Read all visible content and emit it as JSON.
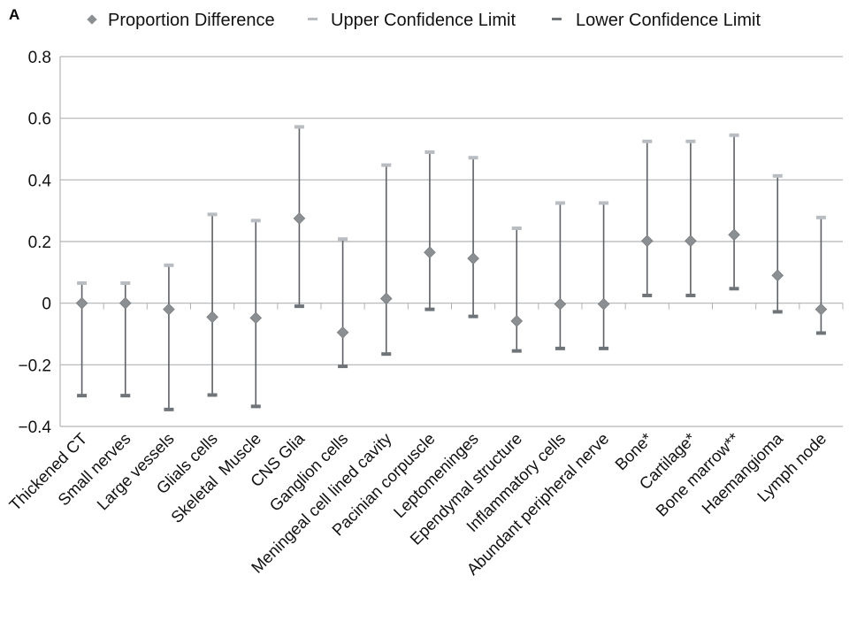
{
  "panel_label": "A",
  "legend": {
    "items": [
      {
        "label": "Proportion Difference",
        "symbol": "diamond",
        "color": "#8c8f92"
      },
      {
        "label": "Upper Confidence Limit",
        "symbol": "dash",
        "color": "#b9bdc1"
      },
      {
        "label": "Lower Confidence Limit",
        "symbol": "dash",
        "color": "#6f7478"
      }
    ]
  },
  "colors": {
    "gridline": "#b0b3b6",
    "whisker": "#5d6064",
    "diamond": "#8c8f92",
    "upper_cap": "#b9bdc1",
    "lower_cap": "#6f7478"
  },
  "chart_data": {
    "type": "scatter",
    "title": "",
    "xlabel": "",
    "ylabel": "",
    "ylim": [
      -0.4,
      0.8
    ],
    "yticks": [
      -0.4,
      -0.2,
      0,
      0.2,
      0.4,
      0.6,
      0.8
    ],
    "ytick_labels": [
      "−0.4",
      "−0.2",
      "0",
      "0.2",
      "0.4",
      "0.6",
      "0.8"
    ],
    "grid": true,
    "legend_position": "top",
    "categories": [
      "Thickened CT",
      "Small nerves",
      "Large vessels",
      "Glials cells",
      "Skeletal  Muscle",
      "CNS Glia",
      "Ganglion cells",
      "Meningeal cell lined cavity",
      "Pacinian corpuscle",
      "Leptomeninges",
      "Ependymal structure",
      "Inflammatory cells",
      "Abundant peripheral nerve",
      "Bone*",
      "Cartilage*",
      "Bone marrow**",
      "Haemangioma",
      "Lymph node"
    ],
    "series": [
      {
        "name": "Proportion Difference",
        "values": [
          0.0,
          0.0,
          -0.02,
          -0.045,
          -0.048,
          0.275,
          -0.095,
          0.015,
          0.165,
          0.145,
          -0.058,
          -0.003,
          -0.003,
          0.202,
          0.202,
          0.222,
          0.09,
          -0.02
        ]
      },
      {
        "name": "Upper Confidence Limit",
        "values": [
          0.065,
          0.065,
          0.123,
          0.288,
          0.268,
          0.572,
          0.208,
          0.448,
          0.49,
          0.472,
          0.243,
          0.325,
          0.325,
          0.525,
          0.525,
          0.545,
          0.413,
          0.278
        ]
      },
      {
        "name": "Lower Confidence Limit",
        "values": [
          -0.3,
          -0.3,
          -0.345,
          -0.298,
          -0.335,
          -0.01,
          -0.205,
          -0.165,
          -0.02,
          -0.043,
          -0.155,
          -0.147,
          -0.147,
          0.025,
          0.025,
          0.047,
          -0.028,
          -0.097
        ]
      }
    ]
  }
}
